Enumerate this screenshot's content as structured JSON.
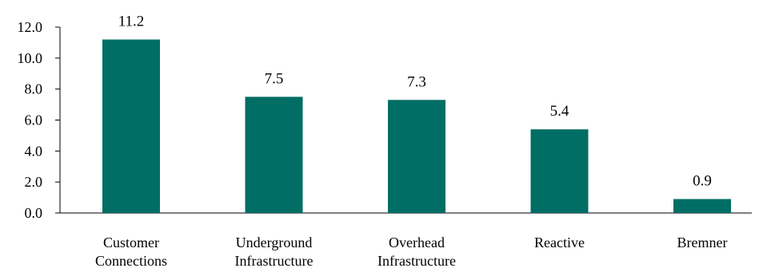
{
  "chart_data": {
    "type": "bar",
    "title": "",
    "xlabel": "",
    "ylabel": "",
    "categories": [
      [
        "Customer",
        "Connections"
      ],
      [
        "Underground",
        "Infrastructure"
      ],
      [
        "Overhead",
        "Infrastructure"
      ],
      [
        "Reactive"
      ],
      [
        "Bremner"
      ]
    ],
    "values": [
      11.2,
      7.5,
      7.3,
      5.4,
      0.9
    ],
    "value_labels": [
      "11.2",
      "7.5",
      "7.3",
      "5.4",
      "0.9"
    ],
    "ylim": [
      0,
      12
    ],
    "yticks": [
      0,
      2,
      4,
      6,
      8,
      10,
      12
    ],
    "ytick_labels": [
      "0.0",
      "2.0",
      "4.0",
      "6.0",
      "8.0",
      "10.0",
      "12.0"
    ],
    "grid": false,
    "legend": "none",
    "bar_color": "#006e64"
  }
}
